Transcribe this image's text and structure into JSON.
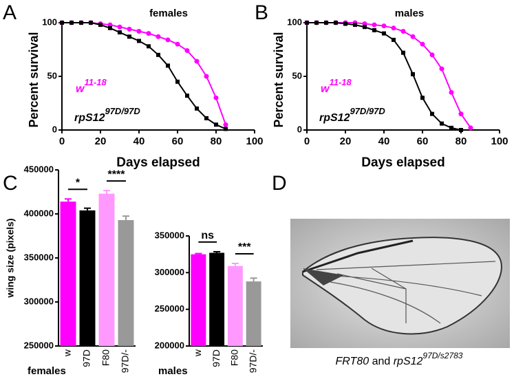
{
  "panels": [
    "A",
    "B",
    "C",
    "D"
  ],
  "chart_data": [
    {
      "type": "line",
      "title": "females",
      "xlabel": "Days elapsed",
      "ylabel": "Percent survival",
      "x": [
        0,
        5,
        10,
        15,
        20,
        25,
        30,
        35,
        40,
        45,
        50,
        55,
        60,
        65,
        70,
        75,
        80,
        85
      ],
      "xlim": [
        0,
        100
      ],
      "xticks": [
        0,
        20,
        40,
        60,
        80,
        100
      ],
      "ylim": [
        0,
        100
      ],
      "yticks": [
        0,
        50,
        100
      ],
      "series": [
        {
          "name": "w",
          "name_superscript": "11-18",
          "color": "#ff00ff",
          "values": [
            100,
            100,
            100,
            100,
            99,
            98,
            96,
            94,
            92,
            90,
            87,
            84,
            80,
            74,
            64,
            50,
            30,
            5
          ]
        },
        {
          "name": "rpS12",
          "name_superscript": "97D/97D",
          "color": "#000000",
          "values": [
            100,
            100,
            100,
            100,
            98,
            95,
            91,
            87,
            83,
            78,
            70,
            60,
            45,
            32,
            20,
            11,
            5,
            1
          ]
        }
      ]
    },
    {
      "type": "line",
      "title": "males",
      "xlabel": "Days elapsed",
      "ylabel": "Percent survival",
      "x": [
        0,
        5,
        10,
        15,
        20,
        25,
        30,
        35,
        40,
        45,
        50,
        55,
        60,
        65,
        70,
        75,
        80,
        85
      ],
      "xlim": [
        0,
        100
      ],
      "xticks": [
        0,
        20,
        40,
        60,
        80,
        100
      ],
      "ylim": [
        0,
        100
      ],
      "yticks": [
        0,
        50,
        100
      ],
      "series": [
        {
          "name": "w",
          "name_superscript": "11-18",
          "color": "#ff00ff",
          "values": [
            100,
            100,
            100,
            100,
            100,
            100,
            99,
            98,
            97,
            95,
            92,
            87,
            80,
            70,
            57,
            35,
            15,
            2
          ]
        },
        {
          "name": "rpS12",
          "name_superscript": "97D/97D",
          "color": "#000000",
          "values": [
            100,
            100,
            100,
            100,
            99,
            98,
            96,
            93,
            90,
            84,
            72,
            52,
            30,
            15,
            6,
            2,
            0,
            null
          ]
        }
      ]
    },
    {
      "type": "bar",
      "xlabel": "females",
      "ylabel": "wing size (pixels)",
      "categories": [
        "w",
        "97D",
        "F80",
        "97D/-"
      ],
      "values": [
        414000,
        404000,
        423000,
        393000
      ],
      "errors": [
        3000,
        2500,
        3500,
        4500
      ],
      "colors": [
        "#ff00ff",
        "#000000",
        "#ff99ff",
        "#999999"
      ],
      "ylim": [
        250000,
        450000
      ],
      "yticks": [
        250000,
        300000,
        350000,
        400000,
        450000
      ],
      "annotations": [
        "*",
        "****"
      ]
    },
    {
      "type": "bar",
      "xlabel": "males",
      "categories": [
        "w",
        "97D",
        "F80",
        "97D/-"
      ],
      "values": [
        325000,
        327000,
        309000,
        288000
      ],
      "errors": [
        1000,
        1500,
        3500,
        4500
      ],
      "colors": [
        "#ff00ff",
        "#000000",
        "#ff99ff",
        "#999999"
      ],
      "ylim": [
        200000,
        350000
      ],
      "yticks": [
        200000,
        250000,
        300000,
        350000
      ],
      "annotations": [
        "ns",
        "***"
      ]
    }
  ],
  "caption": {
    "part1": "FRT80",
    "part2": " and ",
    "part3": "rpS12",
    "part3_superscript": "97D/s2783"
  }
}
